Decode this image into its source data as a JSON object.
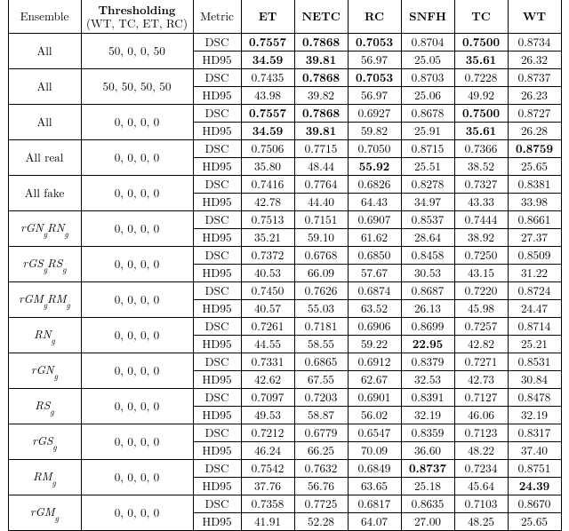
{
  "type": "table",
  "header": {
    "ensemble": "Ensemble",
    "thr_line1": "Thresholding",
    "thr_line2": "(WT, TC, ET, RC)",
    "metric": "Metric",
    "cols": [
      "ET",
      "NETC",
      "RC",
      "SNFH",
      "TC",
      "WT"
    ]
  },
  "groups": [
    {
      "ens_html": "All",
      "thr": "50, 0, 0, 50",
      "rows": [
        {
          "metric": "DSC",
          "vals": [
            "0.7557",
            "0.7868",
            "0.7053",
            "0.8704",
            "0.7500",
            "0.8734"
          ],
          "bold": [
            true,
            true,
            true,
            false,
            true,
            false
          ]
        },
        {
          "metric": "HD95",
          "vals": [
            "34.59",
            "39.81",
            "56.97",
            "25.05",
            "35.61",
            "26.32"
          ],
          "bold": [
            true,
            true,
            false,
            false,
            true,
            false
          ]
        }
      ]
    },
    {
      "ens_html": "All",
      "thr": "50, 50, 50, 50",
      "rows": [
        {
          "metric": "DSC",
          "vals": [
            "0.7435",
            "0.7868",
            "0.7053",
            "0.8703",
            "0.7228",
            "0.8737"
          ],
          "bold": [
            false,
            true,
            true,
            false,
            false,
            false
          ]
        },
        {
          "metric": "HD95",
          "vals": [
            "43.98",
            "39.82",
            "56.97",
            "25.06",
            "49.92",
            "26.23"
          ],
          "bold": [
            false,
            false,
            false,
            false,
            false,
            false
          ]
        }
      ]
    },
    {
      "ens_html": "All",
      "thr": "0, 0, 0, 0",
      "rows": [
        {
          "metric": "DSC",
          "vals": [
            "0.7557",
            "0.7868",
            "0.6927",
            "0.8678",
            "0.7500",
            "0.8727"
          ],
          "bold": [
            true,
            true,
            false,
            false,
            true,
            false
          ]
        },
        {
          "metric": "HD95",
          "vals": [
            "34.59",
            "39.81",
            "59.82",
            "25.91",
            "35.61",
            "26.28"
          ],
          "bold": [
            true,
            true,
            false,
            false,
            true,
            false
          ]
        }
      ]
    },
    {
      "ens_html": "All real",
      "thr": "0, 0, 0, 0",
      "rows": [
        {
          "metric": "DSC",
          "vals": [
            "0.7506",
            "0.7715",
            "0.7050",
            "0.8715",
            "0.7366",
            "0.8759"
          ],
          "bold": [
            false,
            false,
            false,
            false,
            false,
            true
          ]
        },
        {
          "metric": "HD95",
          "vals": [
            "35.80",
            "48.44",
            "55.92",
            "25.51",
            "38.52",
            "25.65"
          ],
          "bold": [
            false,
            false,
            true,
            false,
            false,
            false
          ]
        }
      ]
    },
    {
      "ens_html": "All fake",
      "thr": "0, 0, 0, 0",
      "rows": [
        {
          "metric": "DSC",
          "vals": [
            "0.7416",
            "0.7764",
            "0.6826",
            "0.8278",
            "0.7327",
            "0.8381"
          ],
          "bold": [
            false,
            false,
            false,
            false,
            false,
            false
          ]
        },
        {
          "metric": "HD95",
          "vals": [
            "42.78",
            "44.40",
            "64.43",
            "34.97",
            "43.33",
            "33.98"
          ],
          "bold": [
            false,
            false,
            false,
            false,
            false,
            false
          ]
        }
      ]
    },
    {
      "ens_html": "<span class='ital'>rGN<span class='sub'>g</span>RN<span class='sub'>g</span></span>",
      "thr": "0, 0, 0, 0",
      "rows": [
        {
          "metric": "DSC",
          "vals": [
            "0.7513",
            "0.7151",
            "0.6907",
            "0.8537",
            "0.7444",
            "0.8661"
          ],
          "bold": [
            false,
            false,
            false,
            false,
            false,
            false
          ]
        },
        {
          "metric": "HD95",
          "vals": [
            "35.21",
            "59.10",
            "61.62",
            "28.64",
            "38.92",
            "27.37"
          ],
          "bold": [
            false,
            false,
            false,
            false,
            false,
            false
          ]
        }
      ]
    },
    {
      "ens_html": "<span class='ital'>rGS<span class='sub'>g</span>RS<span class='sub'>g</span></span>",
      "thr": "0, 0, 0, 0",
      "rows": [
        {
          "metric": "DSC",
          "vals": [
            "0.7372",
            "0.6768",
            "0.6850",
            "0.8458",
            "0.7250",
            "0.8509"
          ],
          "bold": [
            false,
            false,
            false,
            false,
            false,
            false
          ]
        },
        {
          "metric": "HD95",
          "vals": [
            "40.53",
            "66.09",
            "57.67",
            "30.53",
            "43.15",
            "31.22"
          ],
          "bold": [
            false,
            false,
            false,
            false,
            false,
            false
          ]
        }
      ]
    },
    {
      "ens_html": "<span class='ital'>rGM<span class='sub'>g</span>RM<span class='sub'>g</span></span>",
      "thr": "0, 0, 0, 0",
      "rows": [
        {
          "metric": "DSC",
          "vals": [
            "0.7450",
            "0.7626",
            "0.6874",
            "0.8687",
            "0.7220",
            "0.8724"
          ],
          "bold": [
            false,
            false,
            false,
            false,
            false,
            false
          ]
        },
        {
          "metric": "HD95",
          "vals": [
            "40.57",
            "55.03",
            "63.52",
            "26.13",
            "45.98",
            "24.47"
          ],
          "bold": [
            false,
            false,
            false,
            false,
            false,
            false
          ]
        }
      ]
    },
    {
      "ens_html": "<span class='ital'>RN<span class='sub'>g</span></span>",
      "thr": "0, 0, 0, 0",
      "rows": [
        {
          "metric": "DSC",
          "vals": [
            "0.7261",
            "0.7181",
            "0.6906",
            "0.8699",
            "0.7257",
            "0.8714"
          ],
          "bold": [
            false,
            false,
            false,
            false,
            false,
            false
          ]
        },
        {
          "metric": "HD95",
          "vals": [
            "44.55",
            "58.55",
            "59.22",
            "22.95",
            "42.82",
            "25.21"
          ],
          "bold": [
            false,
            false,
            false,
            true,
            false,
            false
          ]
        }
      ]
    },
    {
      "ens_html": "<span class='ital'>rGN<span class='sub'>g</span></span>",
      "thr": "0, 0, 0, 0",
      "rows": [
        {
          "metric": "DSC",
          "vals": [
            "0.7331",
            "0.6865",
            "0.6912",
            "0.8379",
            "0.7271",
            "0.8531"
          ],
          "bold": [
            false,
            false,
            false,
            false,
            false,
            false
          ]
        },
        {
          "metric": "HD95",
          "vals": [
            "42.62",
            "67.55",
            "62.67",
            "32.53",
            "42.73",
            "30.84"
          ],
          "bold": [
            false,
            false,
            false,
            false,
            false,
            false
          ]
        }
      ]
    },
    {
      "ens_html": "<span class='ital'>RS<span class='sub'>g</span></span>",
      "thr": "0, 0, 0, 0",
      "rows": [
        {
          "metric": "DSC",
          "vals": [
            "0.7097",
            "0.7203",
            "0.6901",
            "0.8391",
            "0.7127",
            "0.8478"
          ],
          "bold": [
            false,
            false,
            false,
            false,
            false,
            false
          ]
        },
        {
          "metric": "HD95",
          "vals": [
            "49.53",
            "58.87",
            "56.02",
            "32.19",
            "46.06",
            "32.19"
          ],
          "bold": [
            false,
            false,
            false,
            false,
            false,
            false
          ]
        }
      ]
    },
    {
      "ens_html": "<span class='ital'>rGS<span class='sub'>g</span></span>",
      "thr": "0, 0, 0, 0",
      "rows": [
        {
          "metric": "DSC",
          "vals": [
            "0.7212",
            "0.6779",
            "0.6547",
            "0.8359",
            "0.7123",
            "0.8317"
          ],
          "bold": [
            false,
            false,
            false,
            false,
            false,
            false
          ]
        },
        {
          "metric": "HD95",
          "vals": [
            "46.24",
            "66.25",
            "70.09",
            "36.60",
            "48.22",
            "37.40"
          ],
          "bold": [
            false,
            false,
            false,
            false,
            false,
            false
          ]
        }
      ]
    },
    {
      "ens_html": "<span class='ital'>RM<span class='sub'>g</span></span>",
      "thr": "0, 0, 0, 0",
      "rows": [
        {
          "metric": "DSC",
          "vals": [
            "0.7542",
            "0.7632",
            "0.6849",
            "0.8737",
            "0.7234",
            "0.8751"
          ],
          "bold": [
            false,
            false,
            false,
            true,
            false,
            false
          ]
        },
        {
          "metric": "HD95",
          "vals": [
            "37.76",
            "56.76",
            "63.65",
            "25.18",
            "45.64",
            "24.39"
          ],
          "bold": [
            false,
            false,
            false,
            false,
            false,
            true
          ]
        }
      ]
    },
    {
      "ens_html": "<span class='ital'>rGM<span class='sub'>g</span></span>",
      "thr": "0, 0, 0, 0",
      "rows": [
        {
          "metric": "DSC",
          "vals": [
            "0.7358",
            "0.7725",
            "0.6817",
            "0.8635",
            "0.7103",
            "0.8670"
          ],
          "bold": [
            false,
            false,
            false,
            false,
            false,
            false
          ]
        },
        {
          "metric": "HD95",
          "vals": [
            "41.91",
            "52.28",
            "64.07",
            "27.00",
            "48.25",
            "25.65"
          ],
          "bold": [
            false,
            false,
            false,
            false,
            false,
            false
          ]
        }
      ]
    }
  ]
}
